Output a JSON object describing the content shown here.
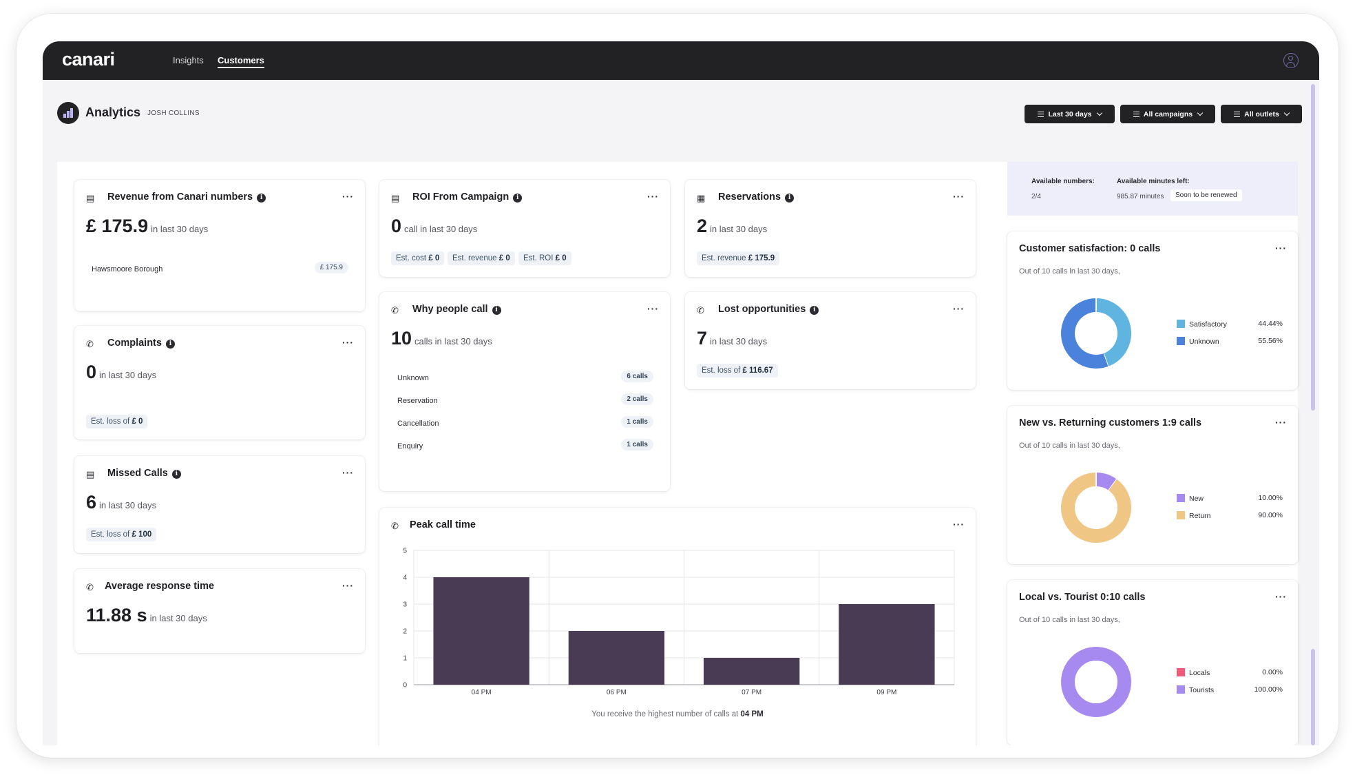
{
  "app": {
    "logo": "canari"
  },
  "nav": [
    {
      "label": "Insights",
      "active": false
    },
    {
      "label": "Customers",
      "active": true
    }
  ],
  "header": {
    "title": "Analytics",
    "subtitle": "JOSH COLLINS"
  },
  "filters": [
    {
      "label": "Last 30 days"
    },
    {
      "label": "All campaigns"
    },
    {
      "label": "All outlets"
    }
  ],
  "revenue": {
    "title": "Revenue from Canari numbers",
    "value": "£ 175.9",
    "period": "in last 30 days",
    "rows": [
      {
        "label": "Hawsmoore Borough",
        "value": "£ 175.9"
      }
    ]
  },
  "roi": {
    "title": "ROI From Campaign",
    "value": "0",
    "period": "call in last 30 days",
    "pills": [
      {
        "label": "Est. cost",
        "value": "£ 0"
      },
      {
        "label": "Est. revenue",
        "value": "£ 0"
      },
      {
        "label": "Est. ROI",
        "value": "£ 0"
      }
    ]
  },
  "reservations": {
    "title": "Reservations",
    "value": "2",
    "period": "in last 30 days",
    "pill": {
      "label": "Est. revenue",
      "value": "£ 175.9"
    }
  },
  "complaints": {
    "title": "Complaints",
    "value": "0",
    "period": "in last 30 days",
    "pill": {
      "label": "Est. loss of",
      "value": "£ 0"
    }
  },
  "why": {
    "title": "Why people call",
    "value": "10",
    "period": "calls in last 30 days",
    "rows": [
      {
        "label": "Unknown",
        "value": "6 calls"
      },
      {
        "label": "Reservation",
        "value": "2 calls"
      },
      {
        "label": "Cancellation",
        "value": "1 calls"
      },
      {
        "label": "Enquiry",
        "value": "1 calls"
      }
    ]
  },
  "lost": {
    "title": "Lost opportunities",
    "value": "7",
    "period": "in last 30 days",
    "pill": {
      "label": "Est. loss of",
      "value": "£ 116.67"
    }
  },
  "missed": {
    "title": "Missed Calls",
    "value": "6",
    "period": "in last 30 days",
    "pill": {
      "label": "Est. loss of",
      "value": "£ 100"
    }
  },
  "response": {
    "title": "Average response time",
    "value": "11.88 s",
    "period": "in last 30 days"
  },
  "peak": {
    "title": "Peak call time",
    "footer": "You receive the highest number of calls at",
    "footer_value": "04 PM"
  },
  "availability": {
    "numbers_label": "Available numbers:",
    "numbers_value": "2/4",
    "minutes_label": "Available minutes left:",
    "minutes_value": "985.87 minutes",
    "renew": "Soon to be renewed"
  },
  "satisfaction": {
    "title": "Customer satisfaction: 0 calls",
    "subtitle": "Out of 10 calls in last 30 days,",
    "legend": [
      {
        "label": "Satisfactory",
        "value": "44.44%",
        "pct": 44.44,
        "color": "#60b4e0"
      },
      {
        "label": "Unknown",
        "value": "55.56%",
        "pct": 55.56,
        "color": "#4a82dc"
      }
    ]
  },
  "returning": {
    "title": "New vs. Returning customers 1:9 calls",
    "subtitle": "Out of 10 calls in last 30 days,",
    "legend": [
      {
        "label": "New",
        "value": "10.00%",
        "pct": 10,
        "color": "#a68af0"
      },
      {
        "label": "Return",
        "value": "90.00%",
        "pct": 90,
        "color": "#f0c684"
      }
    ]
  },
  "local": {
    "title": "Local vs. Tourist 0:10 calls",
    "subtitle": "Out of 10 calls in last 30 days,",
    "legend": [
      {
        "label": "Locals",
        "value": "0.00%",
        "pct": 0,
        "color": "#ef5a7a"
      },
      {
        "label": "Tourists",
        "value": "100.00%",
        "pct": 100,
        "color": "#a68af0"
      }
    ]
  },
  "chart_data": {
    "type": "bar",
    "categories": [
      "04 PM",
      "06 PM",
      "07 PM",
      "09 PM"
    ],
    "values": [
      4,
      2,
      1,
      3
    ],
    "ylim": [
      0,
      5
    ],
    "yticks": [
      "0",
      "1",
      "2",
      "3",
      "4",
      "5"
    ],
    "color": "#4a3b55",
    "grid": true
  }
}
